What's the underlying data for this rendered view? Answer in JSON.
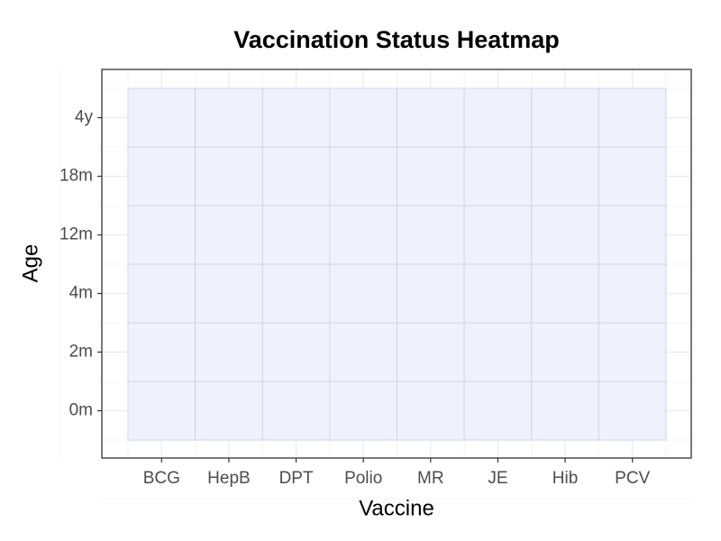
{
  "chart_data": {
    "type": "heatmap",
    "title": "Vaccination Status Heatmap",
    "x_label": "Vaccine",
    "y_label": "Age",
    "x_categories": [
      "BCG",
      "HepB",
      "DPT",
      "Polio",
      "MR",
      "JE",
      "Hib",
      "PCV"
    ],
    "y_categories": [
      "0m",
      "2m",
      "4m",
      "12m",
      "18m",
      "4y"
    ],
    "cell_color": "#eef2ff",
    "grid": true
  }
}
